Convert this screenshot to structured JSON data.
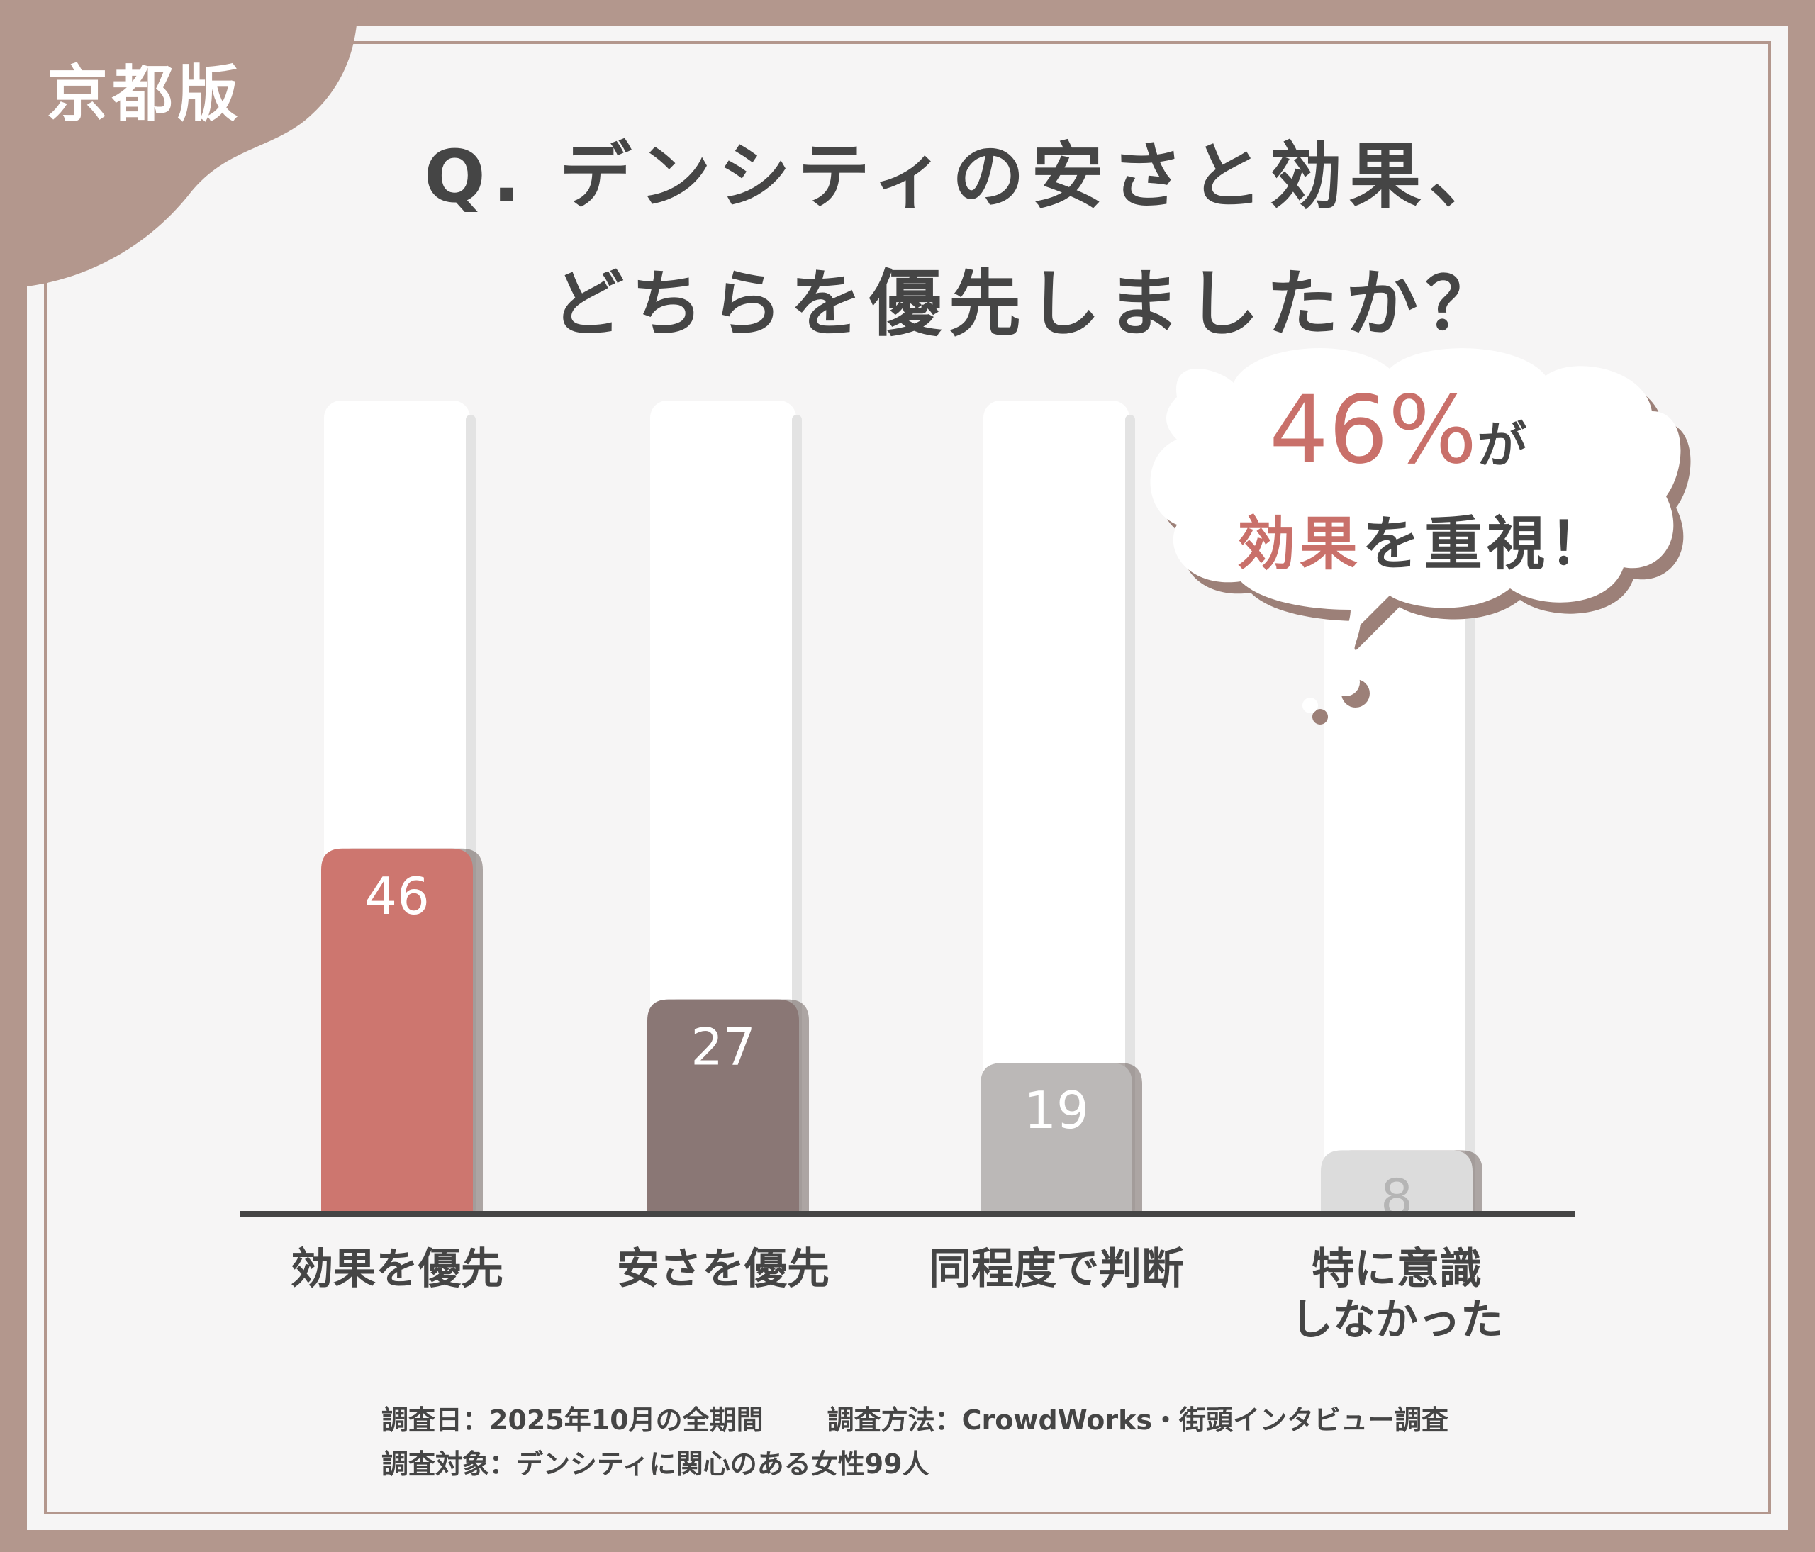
{
  "badge": {
    "text": "京都版"
  },
  "title": {
    "line1": "Q. デンシティの安さと効果、",
    "line2": "どちらを優先しましたか？"
  },
  "callout": {
    "percent": "46%",
    "particle": "が",
    "emphasis": "効果",
    "rest": "を重視！"
  },
  "chart_data": {
    "type": "bar",
    "categories": [
      "効果を優先",
      "安さを優先",
      "同程度で判断",
      "特に意識しなかった"
    ],
    "category_lines": [
      [
        "効果を優先"
      ],
      [
        "安さを優先"
      ],
      [
        "同程度で判断"
      ],
      [
        "特に意識",
        "しなかった"
      ]
    ],
    "values": [
      46,
      27,
      19,
      8
    ],
    "data_labels": [
      "46",
      "27",
      "19",
      "8"
    ],
    "ylim": [
      0,
      100
    ],
    "colors": [
      "#cd766f",
      "#8a7775",
      "#bbb8b7",
      "#dcdcdc"
    ],
    "label_colors": [
      "#ffffff",
      "#ffffff",
      "#ffffff",
      "#b5b5b5"
    ],
    "grid": false
  },
  "footer": {
    "date": "調査日：2025年10月の全期間",
    "method": "調査方法：CrowdWorks・街頭インタビュー調査",
    "target": "調査対象：デンシティに関心のある女性99人"
  }
}
